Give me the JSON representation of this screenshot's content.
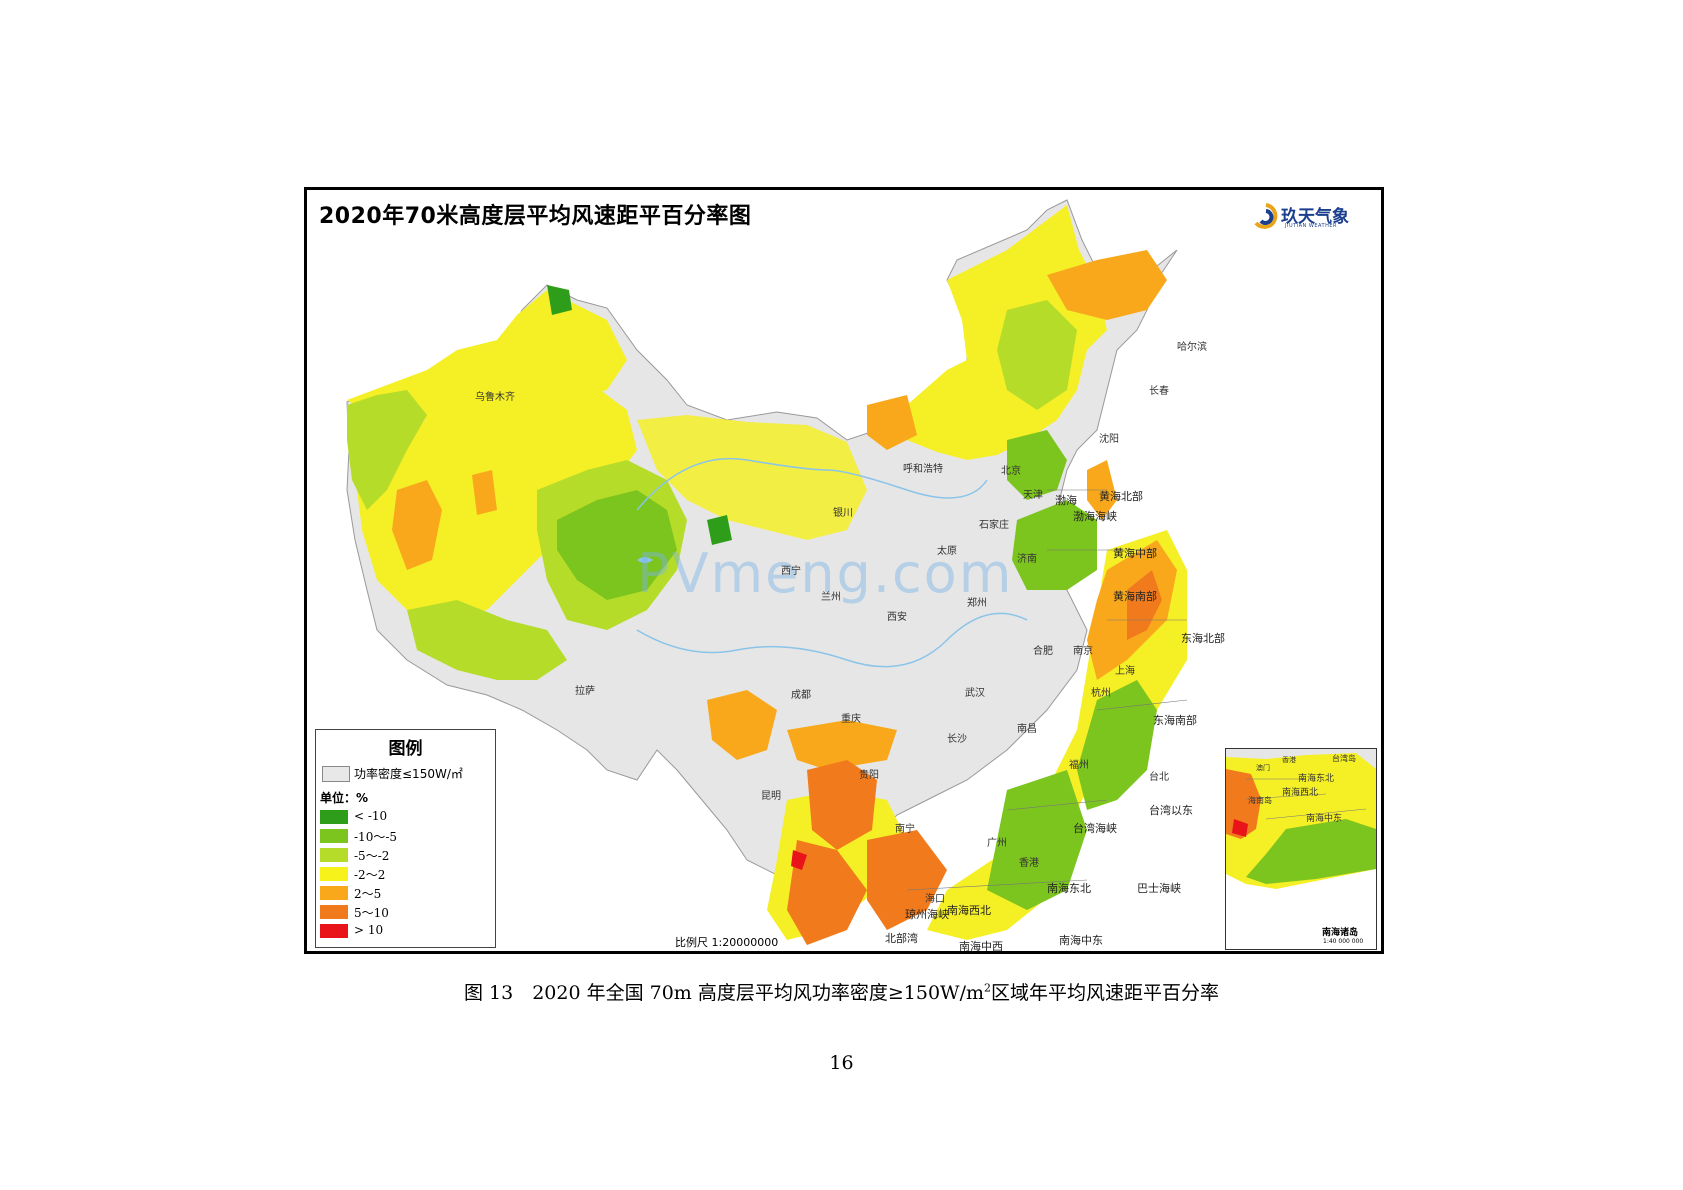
{
  "map": {
    "title": "2020年70米高度层平均风速距平百分率图",
    "logo": {
      "name": "玖天气象",
      "sub": "JIUTIAN WEATHER"
    },
    "watermark": "PVmeng.com",
    "scale": "比例尺 1:20000000",
    "cities": [
      "乌鲁木齐",
      "拉萨",
      "成都",
      "重庆",
      "昆明",
      "贵阳",
      "南宁",
      "海口",
      "广州",
      "香港",
      "西宁",
      "兰州",
      "银川",
      "西安",
      "呼和浩特",
      "太原",
      "北京",
      "天津",
      "石家庄",
      "济南",
      "郑州",
      "武汉",
      "长沙",
      "南昌",
      "合肥",
      "南京",
      "上海",
      "杭州",
      "福州",
      "台北",
      "沈阳",
      "长春",
      "哈尔滨"
    ],
    "seas": [
      "渤海",
      "渤海海峡",
      "黄海北部",
      "黄海中部",
      "黄海南部",
      "东海北部",
      "东海南部",
      "台湾海峡",
      "台湾以东",
      "巴士海峡",
      "南海东北",
      "南海西北",
      "北部湾",
      "琼州海峡",
      "南海中西",
      "南海中东"
    ]
  },
  "legend": {
    "title": "图例",
    "no_data_label": "功率密度≤150W/㎡",
    "no_data_color": "#e8e8e8",
    "unit": "单位：%",
    "items": [
      {
        "label": "< -10",
        "color": "#2e9e1a"
      },
      {
        "label": "-10～-5",
        "color": "#7cc41e"
      },
      {
        "label": "-5～-2",
        "color": "#b6dc2a"
      },
      {
        "label": "-2～2",
        "color": "#f7f21a"
      },
      {
        "label": "2～5",
        "color": "#f9a81b"
      },
      {
        "label": "5～10",
        "color": "#f07a1c"
      },
      {
        "label": "> 10",
        "color": "#e8141a"
      }
    ]
  },
  "inset": {
    "caption": "南海诸岛",
    "scale": "1:40 000 000",
    "labels": [
      "台湾岛",
      "南海东北",
      "南海西北",
      "海南岛",
      "南海中东",
      "澳门",
      "香港"
    ]
  },
  "figure_caption": {
    "prefix": "图 13　2020 年全国 70m 高度层平均风功率密度≥150W/m",
    "sup": "2",
    "suffix": "区域年平均风速距平百分率"
  },
  "page_number": "16"
}
